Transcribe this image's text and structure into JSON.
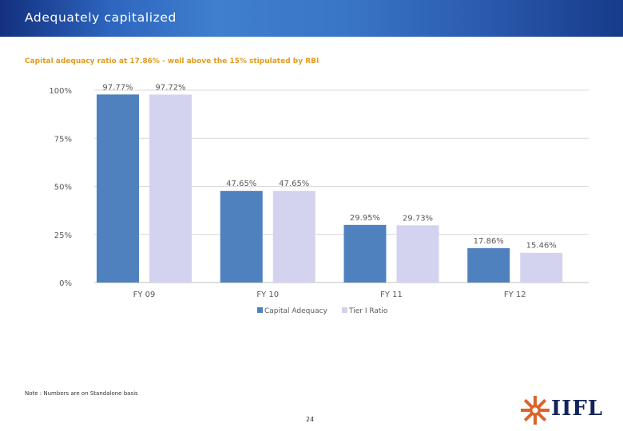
{
  "header": {
    "title": "Adequately capitalized"
  },
  "subtitle": "Capital adequacy ratio at 17.86% - well above the 15% stipulated by RBI",
  "colors": {
    "capital_adequacy": "#4e81bd",
    "tier1": "#d3d3ef",
    "header_dark": "#13307e",
    "header_light": "#3f7fcc",
    "subtitle": "#e39a1d"
  },
  "chart_data": {
    "type": "bar",
    "categories": [
      "FY 09",
      "FY 10",
      "FY 11",
      "FY 12"
    ],
    "series": [
      {
        "name": "Capital Adequacy",
        "values": [
          97.77,
          47.65,
          29.95,
          17.86
        ],
        "labels": [
          "97.77%",
          "47.65%",
          "29.95%",
          "17.86%"
        ]
      },
      {
        "name": "Tier I Ratio",
        "values": [
          97.72,
          47.65,
          29.73,
          15.46
        ],
        "labels": [
          "97.72%",
          "47.65%",
          "29.73%",
          "15.46%"
        ]
      }
    ],
    "yticks": [
      "0%",
      "25%",
      "50%",
      "75%",
      "100%"
    ],
    "ylim": [
      0,
      100
    ],
    "grid": true,
    "legend": "bottom"
  },
  "note": "Note : Numbers are on Standalone basis",
  "page_number": "24",
  "logo": {
    "text": "IIFL"
  }
}
